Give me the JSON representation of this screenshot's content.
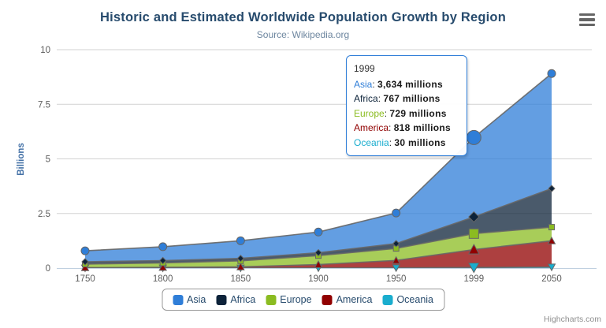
{
  "header": {
    "title": "Historic and Estimated Worldwide Population Growth by Region",
    "subtitle": "Source: Wikipedia.org"
  },
  "context_menu_icon": "hamburger-icon",
  "y_axis": {
    "title": "Billions",
    "tick_labels": [
      "0",
      "2.5",
      "5",
      "7.5",
      "10"
    ]
  },
  "x_axis": {
    "tick_labels": [
      "1750",
      "1800",
      "1850",
      "1900",
      "1950",
      "1999",
      "2050"
    ]
  },
  "tooltip": {
    "header": "1999",
    "rows": [
      {
        "name": "Asia",
        "color": "#2f7ed8",
        "value": "3,634 millions"
      },
      {
        "name": "Africa",
        "color": "#0d233a",
        "value": "767 millions"
      },
      {
        "name": "Europe",
        "color": "#8bbc21",
        "value": "729 millions"
      },
      {
        "name": "America",
        "color": "#910000",
        "value": "818 millions"
      },
      {
        "name": "Oceania",
        "color": "#1aadce",
        "value": "30 millions"
      }
    ]
  },
  "legend": {
    "items": [
      {
        "label": "Asia",
        "color": "#2f7ed8"
      },
      {
        "label": "Africa",
        "color": "#0d233a"
      },
      {
        "label": "Europe",
        "color": "#8bbc21"
      },
      {
        "label": "America",
        "color": "#910000"
      },
      {
        "label": "Oceania",
        "color": "#1aadce"
      }
    ]
  },
  "credits": "Highcharts.com",
  "chart_data": {
    "type": "area",
    "stacking": "normal",
    "title": "Historic and Estimated Worldwide Population Growth by Region",
    "subtitle": "Source: Wikipedia.org",
    "xlabel": "",
    "ylabel": "Billions",
    "unit": "millions",
    "ylim_billions": [
      0,
      10
    ],
    "grid": true,
    "legend_position": "bottom",
    "categories": [
      "1750",
      "1800",
      "1850",
      "1900",
      "1950",
      "1999",
      "2050"
    ],
    "series": [
      {
        "name": "Asia",
        "color": "#2f7ed8",
        "marker": "circle",
        "values_millions": [
          502,
          635,
          809,
          947,
          1402,
          3634,
          5268
        ]
      },
      {
        "name": "Africa",
        "color": "#0d233a",
        "marker": "diamond",
        "values_millions": [
          106,
          107,
          111,
          133,
          221,
          767,
          1766
        ]
      },
      {
        "name": "Europe",
        "color": "#8bbc21",
        "marker": "square",
        "values_millions": [
          163,
          203,
          276,
          408,
          547,
          729,
          628
        ]
      },
      {
        "name": "America",
        "color": "#910000",
        "marker": "triangle",
        "values_millions": [
          18,
          31,
          54,
          156,
          339,
          818,
          1201
        ]
      },
      {
        "name": "Oceania",
        "color": "#1aadce",
        "marker": "triangle-down",
        "values_millions": [
          2,
          2,
          2,
          6,
          13,
          30,
          46
        ]
      }
    ],
    "stack_order_bottom_to_top": [
      "Oceania",
      "America",
      "Europe",
      "Africa",
      "Asia"
    ],
    "hovered_category": "1999",
    "stacked_totals_millions": [
      791,
      978,
      1252,
      1650,
      2522,
      5978,
      8909
    ]
  }
}
